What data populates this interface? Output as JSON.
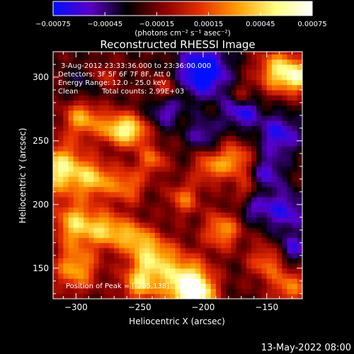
{
  "chart_data": {
    "type": "heatmap",
    "title": "Reconstructed RHESSI Image",
    "xlabel": "Heliocentric X (arcsec)",
    "ylabel": "Heliocentric Y (arcsec)",
    "xlim": [
      -318,
      -122
    ],
    "ylim": [
      126,
      320
    ],
    "x_ticks": [
      -300,
      -250,
      -200,
      -150
    ],
    "y_ticks": [
      150,
      200,
      250,
      300
    ],
    "colorbar": {
      "min": -0.00075,
      "max": 0.00075,
      "ticks": [
        "-0.00075",
        "-0.00045",
        "-0.00015",
        "0.00015",
        "0.00045",
        "0.00075"
      ],
      "units_label": "(photons cm⁻² s⁻¹ asec⁻²)",
      "stops": [
        "#0010ff",
        "#5a00c8",
        "#000000",
        "#8a0000",
        "#e83000",
        "#ffa000",
        "#ffff80",
        "#ffffff"
      ]
    },
    "grid": false,
    "hotspots": [
      {
        "x": -312,
        "y": 228,
        "r": 14,
        "v": 1.0
      },
      {
        "x": -295,
        "y": 268,
        "r": 10,
        "v": 0.75
      },
      {
        "x": -270,
        "y": 260,
        "r": 9,
        "v": 0.7
      },
      {
        "x": -255,
        "y": 258,
        "r": 9,
        "v": 0.8
      },
      {
        "x": -285,
        "y": 220,
        "r": 10,
        "v": 0.7
      },
      {
        "x": -260,
        "y": 215,
        "r": 10,
        "v": 0.6
      },
      {
        "x": -240,
        "y": 235,
        "r": 8,
        "v": 0.55
      },
      {
        "x": -300,
        "y": 185,
        "r": 12,
        "v": 0.85
      },
      {
        "x": -275,
        "y": 180,
        "r": 10,
        "v": 0.75
      },
      {
        "x": -300,
        "y": 150,
        "r": 12,
        "v": 0.75
      },
      {
        "x": -255,
        "y": 175,
        "r": 9,
        "v": 0.6
      },
      {
        "x": -240,
        "y": 160,
        "r": 12,
        "v": 0.8
      },
      {
        "x": -250,
        "y": 138,
        "r": 10,
        "v": 0.75
      },
      {
        "x": -215,
        "y": 140,
        "r": 14,
        "v": 0.95
      },
      {
        "x": -205,
        "y": 130,
        "r": 10,
        "v": 0.9
      },
      {
        "x": -215,
        "y": 205,
        "r": 9,
        "v": 0.55
      },
      {
        "x": -185,
        "y": 180,
        "r": 10,
        "v": 0.7
      },
      {
        "x": -195,
        "y": 230,
        "r": 9,
        "v": 0.55
      },
      {
        "x": -175,
        "y": 235,
        "r": 10,
        "v": 0.65
      },
      {
        "x": -150,
        "y": 155,
        "r": 10,
        "v": 0.55
      },
      {
        "x": -132,
        "y": 135,
        "r": 10,
        "v": 0.6
      },
      {
        "x": -140,
        "y": 305,
        "r": 12,
        "v": 0.9
      },
      {
        "x": -125,
        "y": 300,
        "r": 8,
        "v": 0.7
      },
      {
        "x": -170,
        "y": 285,
        "r": 7,
        "v": 0.5
      },
      {
        "x": -230,
        "y": 290,
        "r": 8,
        "v": 0.45
      },
      {
        "x": -280,
        "y": 300,
        "r": 8,
        "v": 0.45
      },
      {
        "x": -165,
        "y": 210,
        "r": 8,
        "v": 0.45
      }
    ],
    "coldspots": [
      {
        "x": -200,
        "y": 305,
        "r": 14,
        "v": -0.9
      },
      {
        "x": -170,
        "y": 275,
        "r": 10,
        "v": -0.7
      },
      {
        "x": -140,
        "y": 255,
        "r": 12,
        "v": -0.6
      },
      {
        "x": -135,
        "y": 195,
        "r": 12,
        "v": -0.55
      },
      {
        "x": -160,
        "y": 200,
        "r": 9,
        "v": -0.5
      },
      {
        "x": -230,
        "y": 275,
        "r": 10,
        "v": -0.5
      },
      {
        "x": -200,
        "y": 255,
        "r": 9,
        "v": -0.45
      },
      {
        "x": -150,
        "y": 225,
        "r": 9,
        "v": -0.5
      },
      {
        "x": -130,
        "y": 165,
        "r": 8,
        "v": -0.5
      },
      {
        "x": -290,
        "y": 295,
        "r": 10,
        "v": -0.35
      }
    ],
    "annotations": [
      "3-Aug-2012 23:33:36.000 to 23:36:00.000",
      "Detectors: 3F 5F 6F 7F 8F, Att 0",
      "Energy Range: 12.0 - 25.0 keV",
      "Clean",
      "Total counts: 2.99E+03",
      "Position of Peak = [-205,138]"
    ],
    "footer_date": "13-May-2022 08:00"
  }
}
